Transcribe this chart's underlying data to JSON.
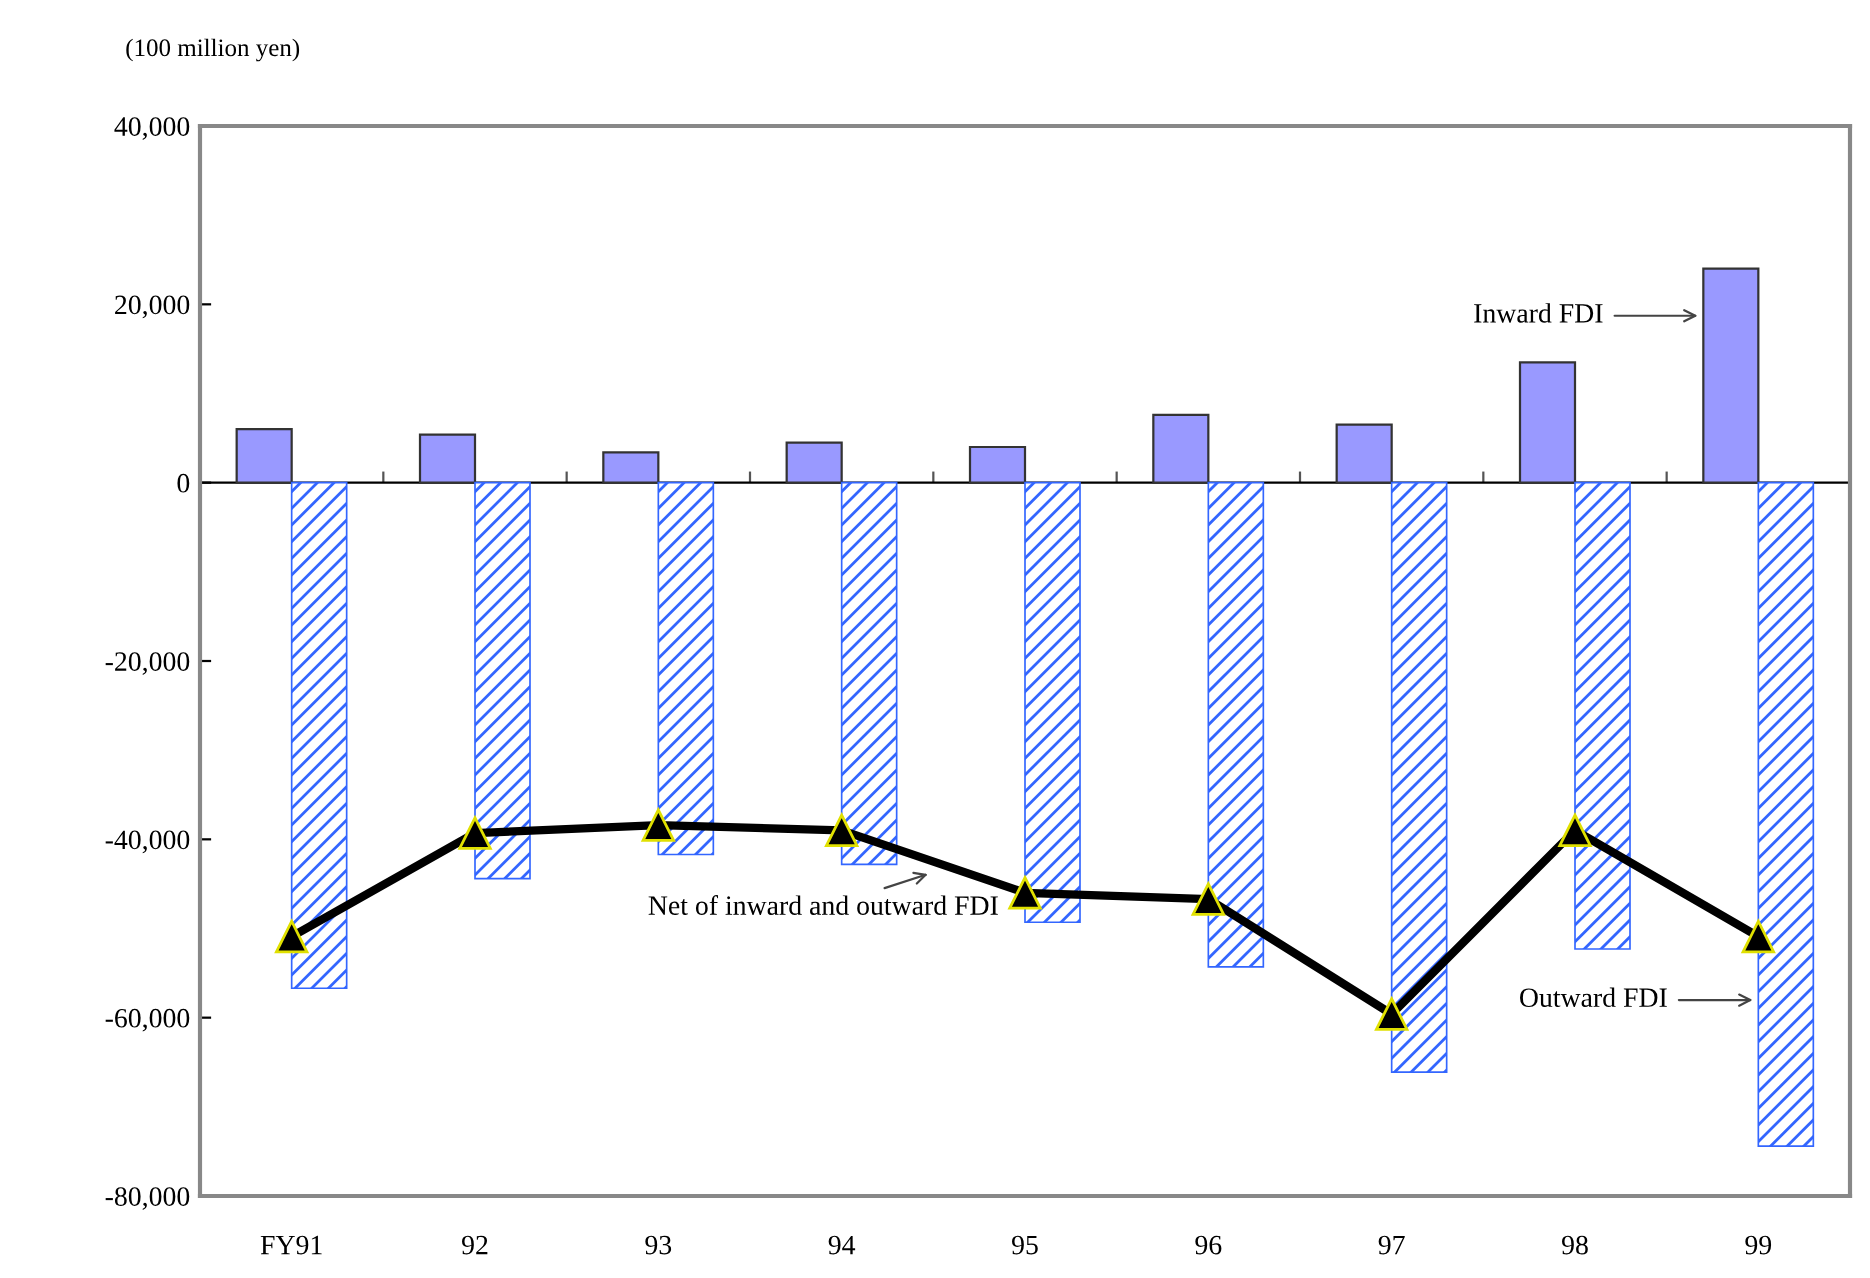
{
  "chart_data": {
    "type": "bar",
    "ylabel": "(100 million yen)",
    "categories": [
      "FY91",
      "92",
      "93",
      "94",
      "95",
      "96",
      "97",
      "98",
      "99"
    ],
    "series": [
      {
        "name": "Inward FDI",
        "color": "#9999ff",
        "values": [
          6000,
          5400,
          3400,
          4500,
          4000,
          7600,
          6500,
          13500,
          24000
        ]
      },
      {
        "name": "Outward FDI",
        "color": "#3366ff",
        "values": [
          -56700,
          -44400,
          -41700,
          -42800,
          -49300,
          -54300,
          -66100,
          -52300,
          -74400
        ]
      },
      {
        "name": "Net of inward and outward FDI",
        "type": "line",
        "color": "#000000",
        "marker": "triangle",
        "values": [
          -50900,
          -39300,
          -38400,
          -39000,
          -46000,
          -46700,
          -59600,
          -39000,
          -50900
        ]
      }
    ],
    "ylim": [
      -80000,
      40000
    ],
    "yticks": [
      {
        "value": -80000,
        "label": "-80,000"
      },
      {
        "value": -60000,
        "label": "-60,000"
      },
      {
        "value": -40000,
        "label": "-40,000"
      },
      {
        "value": -20000,
        "label": "-20,000"
      },
      {
        "value": 0,
        "label": "0"
      },
      {
        "value": 20000,
        "label": "20,000"
      },
      {
        "value": 40000,
        "label": "40,000"
      }
    ],
    "legend": false
  }
}
